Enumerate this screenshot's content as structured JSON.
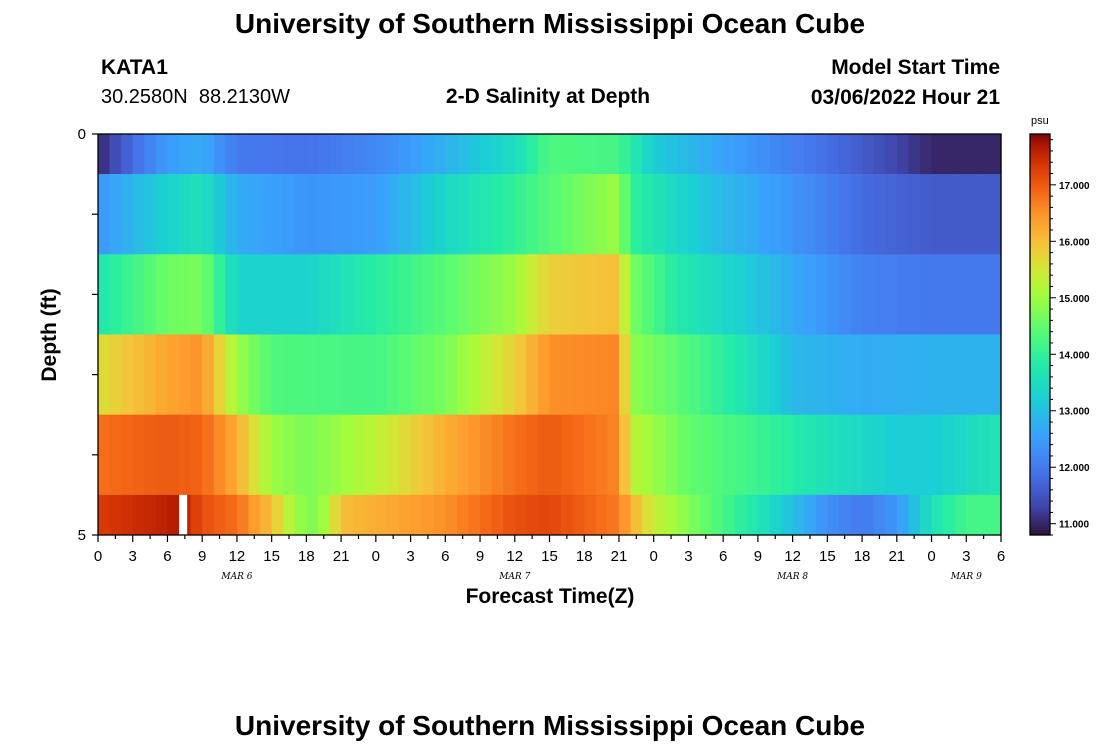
{
  "page_title": "University of Southern Mississippi Ocean Cube",
  "footer_title": "University of Southern Mississippi Ocean Cube",
  "station": {
    "name": "KATA1",
    "coords": "30.2580N  88.2130W"
  },
  "model": {
    "label": "Model Start Time",
    "value": "03/06/2022 Hour 21"
  },
  "chart_data": {
    "type": "heatmap",
    "title": "2-D Salinity at Depth",
    "xlabel": "Forecast Time(Z)",
    "ylabel": "Depth (ft)",
    "ylim": [
      0,
      5
    ],
    "y_tick_labels": [
      "0",
      "5"
    ],
    "y_ticks": [
      0,
      1,
      2,
      3,
      4,
      5
    ],
    "x_tick_labels": [
      "0",
      "3",
      "6",
      "9",
      "12",
      "15",
      "18",
      "21",
      "0",
      "3",
      "6",
      "9",
      "12",
      "15",
      "18",
      "21",
      "0",
      "3",
      "6",
      "9",
      "12",
      "15",
      "18",
      "21",
      "0",
      "3",
      "6"
    ],
    "x_hours": [
      0,
      78
    ],
    "date_labels": [
      {
        "label": "MAR 6",
        "hour": 12
      },
      {
        "label": "MAR 7",
        "hour": 36
      },
      {
        "label": "MAR 8",
        "hour": 60
      },
      {
        "label": "MAR 9",
        "hour": 75
      }
    ],
    "layers": [
      {
        "depth_range": [
          0,
          0.5
        ],
        "keys": [
          [
            0,
            11.0
          ],
          [
            3,
            11.8
          ],
          [
            6,
            12.5
          ],
          [
            9,
            12.7
          ],
          [
            12,
            12.0
          ],
          [
            18,
            11.9
          ],
          [
            24,
            12.2
          ],
          [
            30,
            12.8
          ],
          [
            36,
            13.5
          ],
          [
            39,
            14.3
          ],
          [
            45,
            14.2
          ],
          [
            48,
            13.2
          ],
          [
            54,
            12.6
          ],
          [
            60,
            12.1
          ],
          [
            66,
            11.6
          ],
          [
            72,
            11.0
          ],
          [
            78,
            11.0
          ]
        ]
      },
      {
        "depth_range": [
          0.5,
          1.5
        ],
        "keys": [
          [
            0,
            12.4
          ],
          [
            6,
            13.3
          ],
          [
            9,
            13.6
          ],
          [
            12,
            12.7
          ],
          [
            18,
            12.4
          ],
          [
            24,
            12.5
          ],
          [
            30,
            13.4
          ],
          [
            36,
            14.0
          ],
          [
            42,
            14.7
          ],
          [
            45,
            15.0
          ],
          [
            46,
            14.0
          ],
          [
            50,
            13.4
          ],
          [
            54,
            12.9
          ],
          [
            60,
            12.4
          ],
          [
            66,
            11.8
          ],
          [
            72,
            11.6
          ],
          [
            78,
            11.6
          ]
        ]
      },
      {
        "depth_range": [
          1.5,
          2.5
        ],
        "keys": [
          [
            0,
            13.7
          ],
          [
            6,
            14.6
          ],
          [
            9,
            14.7
          ],
          [
            12,
            13.3
          ],
          [
            18,
            13.3
          ],
          [
            24,
            13.9
          ],
          [
            30,
            14.4
          ],
          [
            36,
            15.0
          ],
          [
            39,
            15.8
          ],
          [
            45,
            16.0
          ],
          [
            46,
            14.7
          ],
          [
            50,
            13.8
          ],
          [
            56,
            13.2
          ],
          [
            60,
            12.7
          ],
          [
            66,
            12.1
          ],
          [
            72,
            12.0
          ],
          [
            78,
            12.0
          ]
        ]
      },
      {
        "depth_range": [
          2.5,
          3.5
        ],
        "keys": [
          [
            0,
            15.6
          ],
          [
            6,
            16.3
          ],
          [
            9,
            16.5
          ],
          [
            12,
            15.0
          ],
          [
            15,
            14.3
          ],
          [
            24,
            14.2
          ],
          [
            30,
            14.7
          ],
          [
            36,
            15.8
          ],
          [
            39,
            16.5
          ],
          [
            45,
            16.6
          ],
          [
            46,
            14.9
          ],
          [
            52,
            14.2
          ],
          [
            57,
            13.5
          ],
          [
            60,
            12.9
          ],
          [
            66,
            12.7
          ],
          [
            72,
            12.8
          ],
          [
            78,
            12.8
          ]
        ]
      },
      {
        "depth_range": [
          3.5,
          4.5
        ],
        "keys": [
          [
            0,
            16.8
          ],
          [
            6,
            17.0
          ],
          [
            9,
            16.9
          ],
          [
            12,
            16.2
          ],
          [
            15,
            15.0
          ],
          [
            18,
            14.7
          ],
          [
            24,
            15.3
          ],
          [
            30,
            16.2
          ],
          [
            36,
            16.8
          ],
          [
            39,
            17.0
          ],
          [
            45,
            16.6
          ],
          [
            46,
            15.3
          ],
          [
            51,
            14.5
          ],
          [
            57,
            14.1
          ],
          [
            63,
            13.6
          ],
          [
            69,
            13.2
          ],
          [
            72,
            13.2
          ],
          [
            78,
            13.7
          ]
        ]
      },
      {
        "depth_range": [
          4.5,
          5
        ],
        "keys": [
          [
            0,
            17.3
          ],
          [
            6,
            17.6
          ],
          [
            7,
            17.7
          ],
          [
            9,
            17.1
          ],
          [
            12,
            16.8
          ],
          [
            15,
            16.0
          ],
          [
            17,
            15.0
          ],
          [
            19,
            14.7
          ],
          [
            21,
            16.0
          ],
          [
            24,
            16.2
          ],
          [
            30,
            16.5
          ],
          [
            36,
            17.1
          ],
          [
            39,
            17.2
          ],
          [
            45,
            16.7
          ],
          [
            46,
            16.2
          ],
          [
            48,
            15.4
          ],
          [
            51,
            14.8
          ],
          [
            54,
            14.2
          ],
          [
            57,
            13.7
          ],
          [
            60,
            13.0
          ],
          [
            63,
            12.3
          ],
          [
            66,
            12.0
          ],
          [
            69,
            12.4
          ],
          [
            72,
            13.6
          ],
          [
            75,
            14.2
          ],
          [
            78,
            14.2
          ]
        ]
      }
    ],
    "gap_hour": [
      7.0,
      7.7
    ],
    "colorbar": {
      "unit": "psu",
      "range": [
        10.8,
        17.9
      ],
      "tick_labels": [
        "17.000",
        "16.000",
        "15.000",
        "14.000",
        "13.000",
        "12.000",
        "11.000"
      ],
      "tick_values": [
        17,
        16,
        15,
        14,
        13,
        12,
        11
      ]
    }
  }
}
